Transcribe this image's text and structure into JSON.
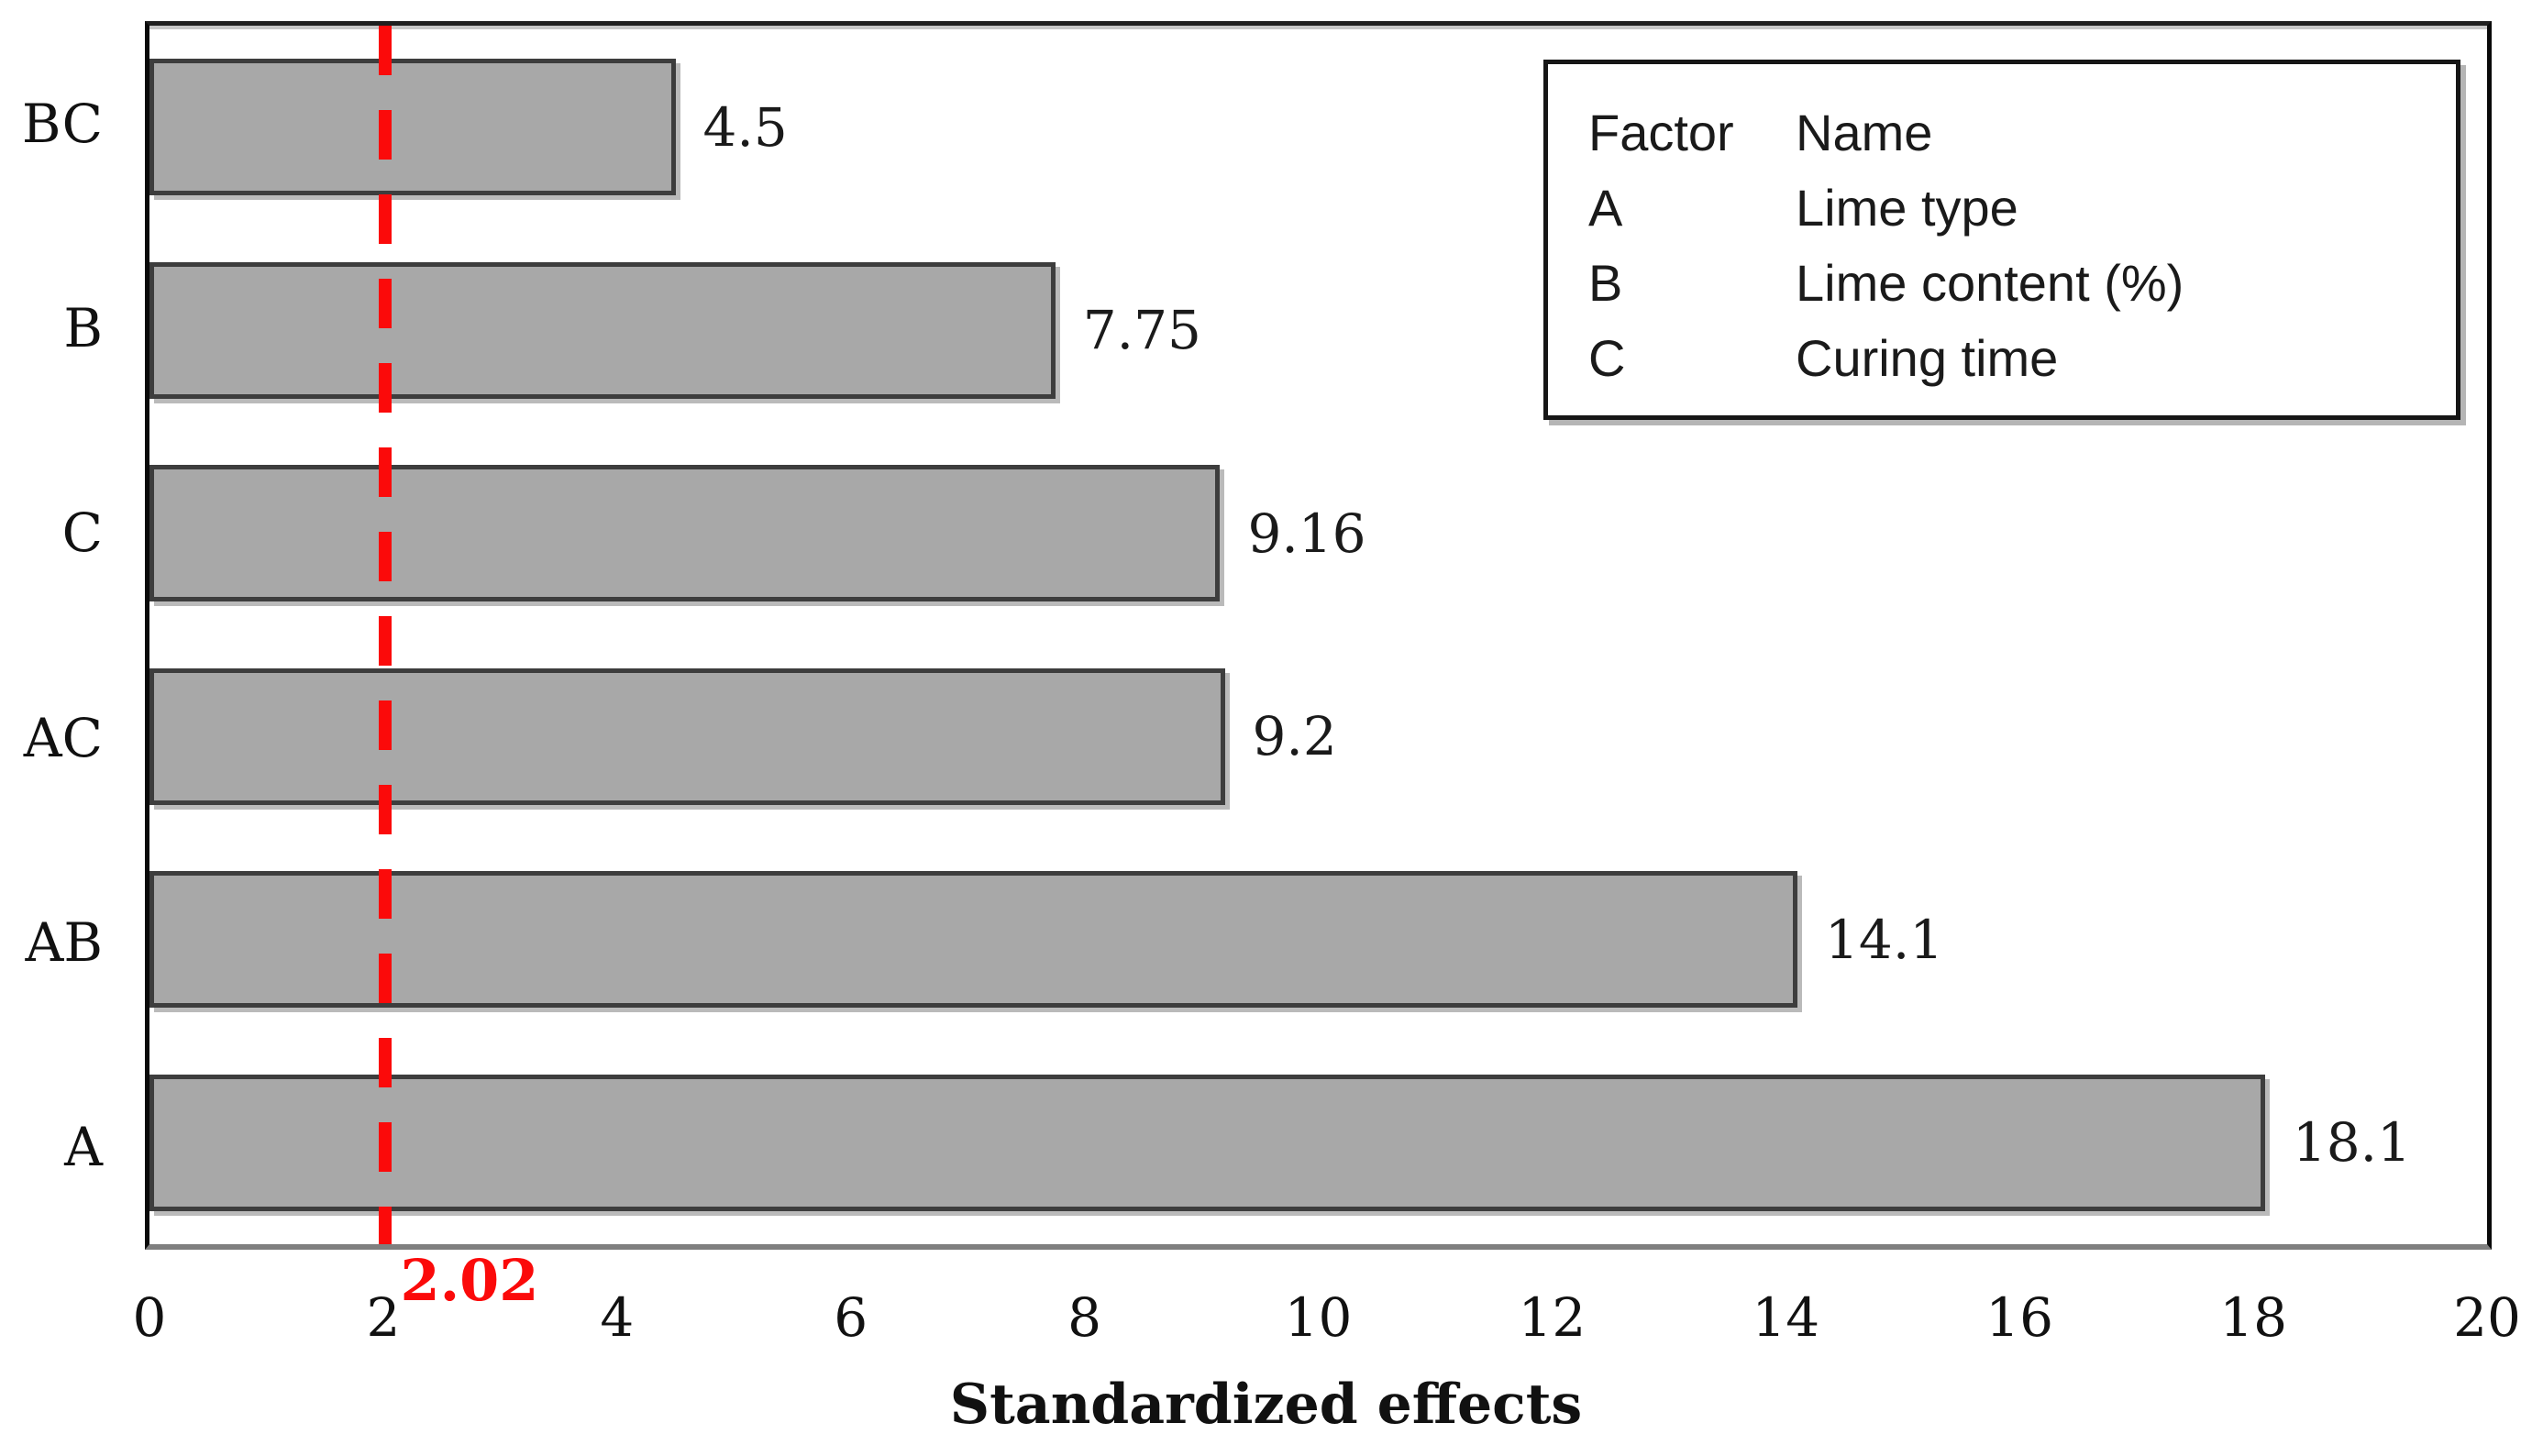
{
  "chart_data": {
    "type": "bar",
    "orientation": "horizontal",
    "categories": [
      "BC",
      "B",
      "C",
      "AC",
      "AB",
      "A"
    ],
    "values": [
      4.5,
      7.75,
      9.16,
      9.2,
      14.1,
      18.1
    ],
    "value_labels": [
      "4.5",
      "7.75",
      "9.16",
      "9.2",
      "14.1",
      "18.1"
    ],
    "xlabel": "Standardized effects",
    "xlim": [
      0,
      20
    ],
    "x_ticks": [
      "0",
      "2",
      "4",
      "6",
      "8",
      "10",
      "12",
      "14",
      "16",
      "18",
      "20"
    ],
    "grid": false,
    "bar_fill": "#a8a8a8",
    "bar_border": "#3d3d3d",
    "reference_line": {
      "value": 2.02,
      "label": "2.02",
      "color": "#fb0a0a",
      "style": "dashed"
    },
    "legend": {
      "position": "top-right",
      "header": {
        "factor": "Factor",
        "name": "Name"
      },
      "rows": [
        {
          "factor": "A",
          "name": "Lime type"
        },
        {
          "factor": "B",
          "name": "Lime content (%)"
        },
        {
          "factor": "C",
          "name": "Curing time"
        }
      ]
    }
  }
}
